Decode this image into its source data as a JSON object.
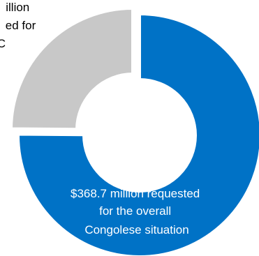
{
  "chart_data": {
    "type": "pie",
    "variant": "donut",
    "title": "",
    "slices": [
      {
        "name": "requested for the overall Congolese situation",
        "value": 368.7,
        "unit": "$ million",
        "color": "#0072C6",
        "label_lines": [
          "$368.7 million requested",
          "for the overall",
          "Congolese situation"
        ]
      },
      {
        "name": "requested for DRC",
        "value": 122,
        "unit": "$ million",
        "color": "#C8C8C8",
        "label_lines": [
          "illion",
          "ed for",
          "C"
        ]
      }
    ]
  }
}
